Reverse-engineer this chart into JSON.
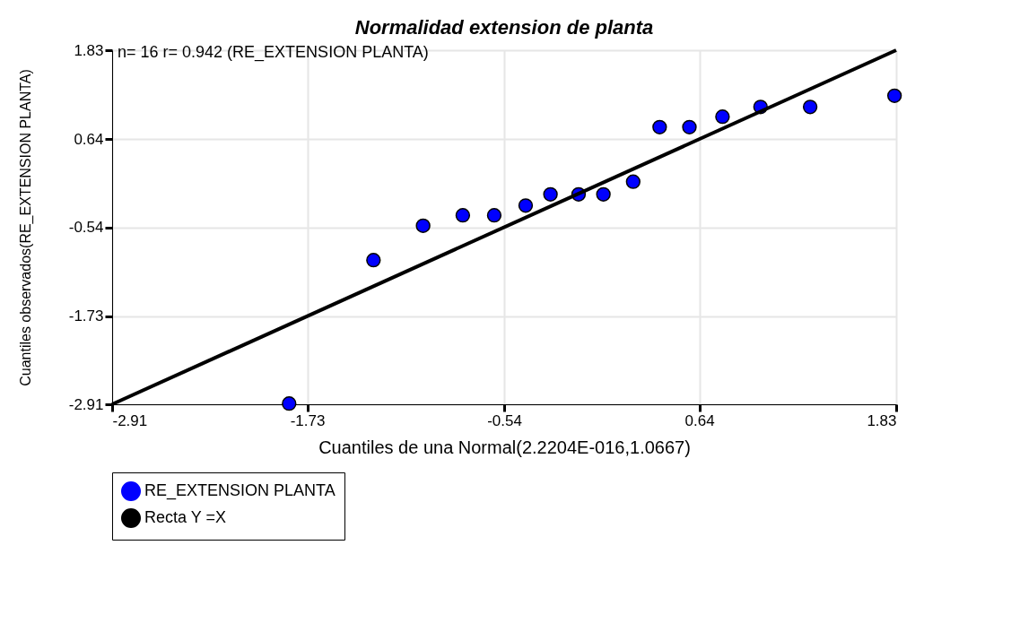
{
  "chart_data": {
    "type": "scatter",
    "title": "Normalidad extension de planta",
    "xlabel": "Cuantiles de una Normal(2.2204E-016,1.0667)",
    "ylabel": "Cuantiles observados(RE_EXTENSION PLANTA)",
    "annotations": [
      "n= 16 r= 0.942 (RE_EXTENSION PLANTA)"
    ],
    "series": [
      {
        "name": "RE_EXTENSION PLANTA",
        "color": "#0000ff",
        "marker": "circle",
        "x": [
          -1.84,
          -1.33,
          -1.03,
          -0.79,
          -0.6,
          -0.41,
          -0.26,
          -0.09,
          0.06,
          0.24,
          0.4,
          0.58,
          0.78,
          1.01,
          1.31,
          1.82
        ],
        "values": [
          -2.9,
          -0.98,
          -0.52,
          -0.38,
          -0.38,
          -0.25,
          -0.1,
          -0.1,
          -0.1,
          0.07,
          0.8,
          0.8,
          0.94,
          1.07,
          1.07,
          1.22
        ]
      },
      {
        "name": "Recta Y =X",
        "color": "#000000",
        "type": "line",
        "marker": "none",
        "line_style": "solid",
        "x": [
          -2.91,
          1.83
        ],
        "values": [
          -2.91,
          1.83
        ]
      }
    ],
    "xlim": [
      -2.91,
      1.83
    ],
    "xticks": [
      -2.91,
      -1.73,
      -0.54,
      0.64,
      1.83
    ],
    "ylim": [
      -2.91,
      1.83
    ],
    "yticks": [
      -2.91,
      -1.73,
      -0.54,
      0.64,
      1.83
    ],
    "grid": true,
    "legend": "bottom"
  }
}
